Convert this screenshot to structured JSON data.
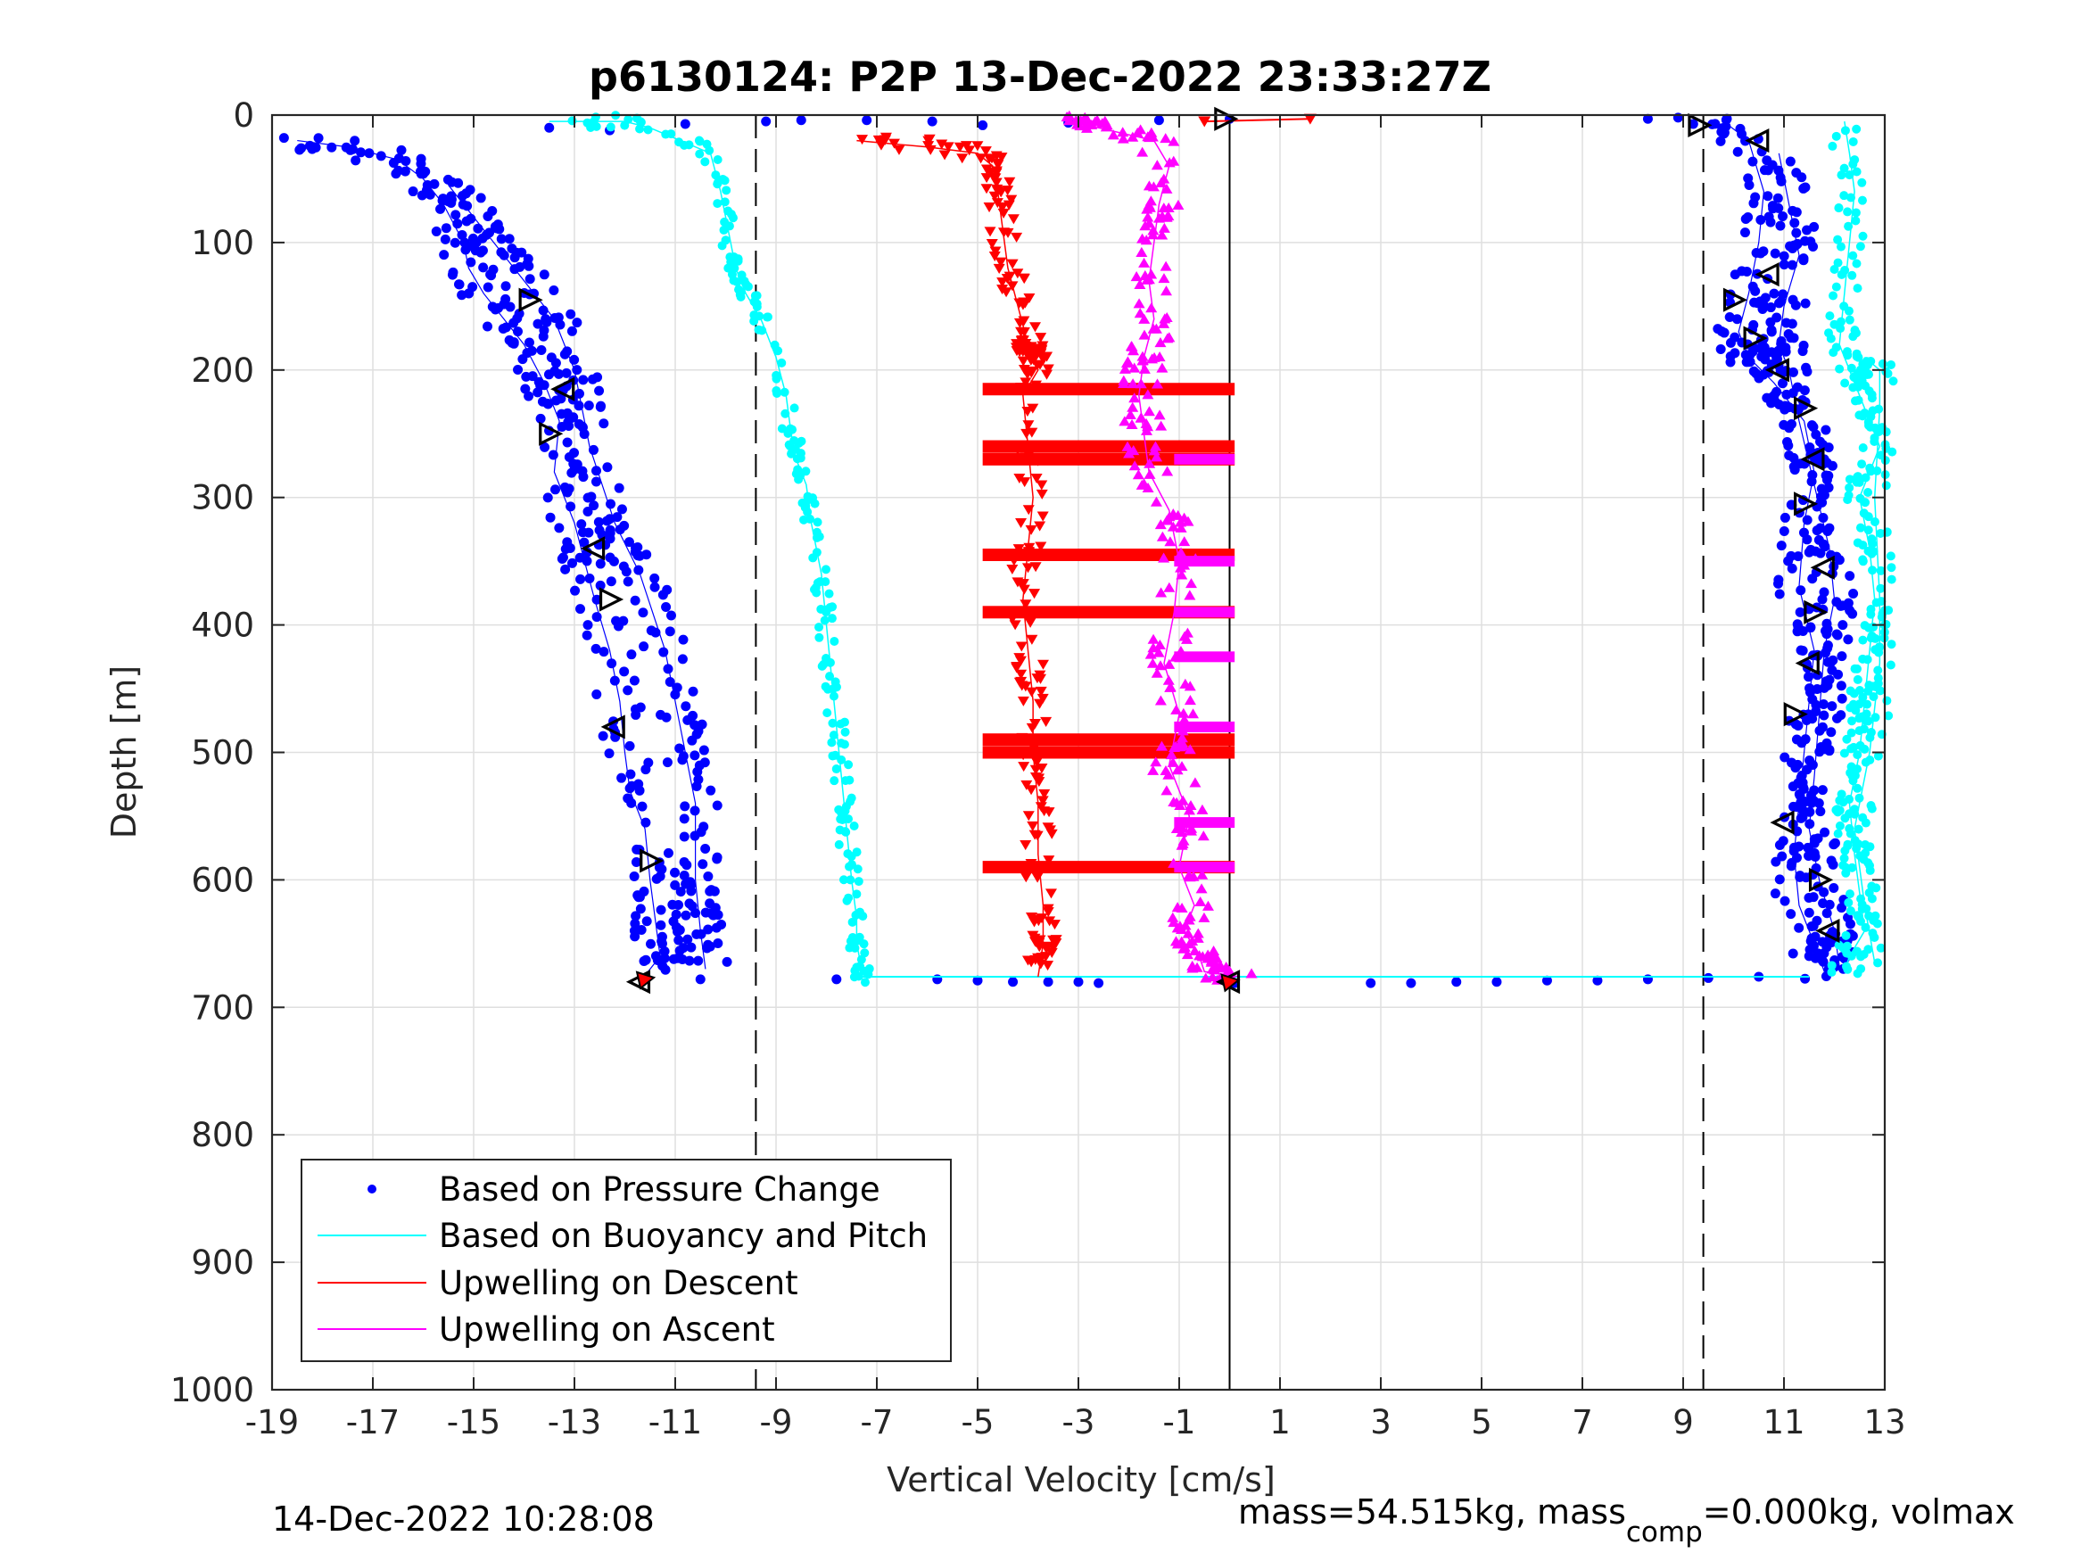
{
  "chart_data": {
    "type": "scatter",
    "title": "p6130124: P2P 13-Dec-2022 23:33:27Z",
    "xlabel": "Vertical Velocity [cm/s]",
    "ylabel": "Depth [m]",
    "xlim": [
      -19,
      13
    ],
    "ylim": [
      0,
      1000
    ],
    "y_reversed": true,
    "grid": true,
    "xticks": [
      "-19",
      "-17",
      "-15",
      "-13",
      "-11",
      "-9",
      "-7",
      "-5",
      "-3",
      "-1",
      "1",
      "3",
      "5",
      "7",
      "9",
      "11",
      "13"
    ],
    "yticks": [
      "0",
      "100",
      "200",
      "300",
      "400",
      "500",
      "600",
      "700",
      "800",
      "900",
      "1000"
    ],
    "reference_lines": {
      "dashed_x": [
        -9.4,
        9.4
      ],
      "solid_x": [
        0
      ]
    },
    "legend": {
      "position": "bottom-left",
      "entries": [
        {
          "label": "Based on Pressure Change",
          "color": "#0000ff",
          "marker": "dot"
        },
        {
          "label": "Based on Buoyancy and Pitch",
          "color": "#00ffff",
          "marker": "line"
        },
        {
          "label": "Upwelling on Descent",
          "color": "#ff0000",
          "marker": "line"
        },
        {
          "label": "Upwelling on Ascent",
          "color": "#ff00ff",
          "marker": "line"
        }
      ]
    },
    "series": [
      {
        "name": "Based on Pressure Change",
        "color": "#0000ff",
        "profiles": [
          {
            "part": "descent",
            "x": [
              -18.5,
              -17.5,
              -16.5,
              -16.0,
              -15.6,
              -15.2,
              -15.1,
              -14.8,
              -14.4,
              -14.0,
              -13.6,
              -13.3,
              -13.4,
              -13.0,
              -12.8,
              -12.6,
              -12.3,
              -12.1,
              -12.0,
              -11.9,
              -11.6,
              -11.5,
              -11.4,
              -11.3,
              -11.6
            ],
            "y": [
              20,
              25,
              35,
              50,
              70,
              100,
              120,
              140,
              160,
              180,
              210,
              240,
              280,
              320,
              350,
              380,
              420,
              460,
              500,
              530,
              560,
              600,
              630,
              660,
              675
            ]
          },
          {
            "part": "descent-outer",
            "x": [
              -15.5,
              -14.8,
              -14.2,
              -13.4,
              -13.0,
              -12.7,
              -12.2,
              -11.7,
              -11.2,
              -10.9,
              -10.6,
              -10.6,
              -10.5,
              -10.4
            ],
            "y": [
              55,
              90,
              120,
              160,
              200,
              260,
              320,
              360,
              420,
              480,
              540,
              600,
              640,
              670
            ]
          },
          {
            "part": "ascent",
            "x": [
              9.8,
              10.3,
              10.6,
              10.5,
              10.3,
              10.1,
              10.3,
              10.8,
              11.4,
              11.6,
              11.4,
              11.3,
              11.6,
              11.5,
              11.4,
              11.3,
              11.2,
              11.3,
              11.6,
              11.8
            ],
            "y": [
              5,
              20,
              60,
              100,
              140,
              170,
              190,
              210,
              240,
              280,
              320,
              370,
              420,
              460,
              500,
              540,
              580,
              620,
              650,
              672
            ]
          },
          {
            "part": "ascent-outer",
            "x": [
              10.9,
              11.1,
              11.3,
              11.0,
              10.9,
              11.1,
              11.3,
              11.6,
              11.9,
              12.0,
              11.8,
              11.7,
              11.6,
              11.5,
              11.7,
              12.0,
              12.1
            ],
            "y": [
              30,
              70,
              110,
              150,
              180,
              200,
              240,
              290,
              340,
              380,
              420,
              470,
              520,
              560,
              600,
              640,
              668
            ]
          },
          {
            "part": "bottom",
            "x": [
              -10.5,
              -7.8,
              -5.8,
              -5.0,
              -4.3,
              -3.6,
              -3.0,
              -2.6,
              0.1,
              2.8,
              3.6,
              4.5,
              5.3,
              6.3,
              7.3,
              8.3,
              9.5,
              10.5
            ],
            "y": [
              678,
              678,
              678,
              679,
              680,
              680,
              680,
              681,
              681,
              681,
              681,
              680,
              680,
              679,
              679,
              678,
              677,
              676
            ]
          },
          {
            "part": "surface",
            "x": [
              -13.5,
              -12.3,
              -10.8,
              -9.2,
              -8.5,
              -7.2,
              -5.9,
              -4.9,
              -3.2,
              -1.4,
              0.0,
              8.3,
              8.9,
              9.2
            ],
            "y": [
              10,
              12,
              7,
              5,
              4,
              4,
              5,
              8,
              6,
              4,
              3,
              3,
              2,
              7
            ]
          }
        ]
      },
      {
        "name": "Based on Buoyancy and Pitch",
        "color": "#00ffff",
        "profiles": [
          {
            "part": "descent",
            "x": [
              -13.5,
              -12.0,
              -11.5,
              -10.3,
              -10.1,
              -10.0,
              -9.9,
              -9.8,
              -9.6,
              -9.3,
              -9.0,
              -8.8,
              -8.7,
              -8.6,
              -8.4,
              -8.3,
              -8.1,
              -8.0,
              -7.9,
              -7.8,
              -7.7,
              -7.6,
              -7.5,
              -7.4,
              -7.4,
              -7.3,
              -7.3
            ],
            "y": [
              5,
              5,
              10,
              30,
              60,
              80,
              100,
              120,
              140,
              160,
              190,
              220,
              250,
              270,
              290,
              320,
              360,
              400,
              440,
              480,
              520,
              560,
              600,
              630,
              650,
              670,
              676
            ]
          },
          {
            "part": "ascent",
            "x": [
              12.2,
              12.3,
              12.4,
              12.3,
              12.2,
              12.1,
              12.3,
              12.6,
              12.9,
              12.5,
              12.7,
              12.8,
              12.7,
              12.6,
              12.5,
              12.3,
              12.4,
              12.5,
              12.6,
              12.3,
              12.2
            ],
            "y": [
              5,
              30,
              60,
              100,
              140,
              180,
              200,
              230,
              260,
              300,
              340,
              380,
              420,
              460,
              500,
              540,
              580,
              610,
              640,
              660,
              672
            ]
          },
          {
            "part": "ascent-outer",
            "x": [
              12.6,
              12.9,
              12.9,
              12.8,
              12.9,
              12.9,
              12.7,
              12.4,
              12.6,
              12.8
            ],
            "y": [
              190,
              200,
              230,
              300,
              380,
              430,
              500,
              560,
              620,
              665
            ]
          },
          {
            "part": "bottom",
            "x": [
              -7.4,
              11.5
            ],
            "y": [
              676,
              676
            ]
          }
        ]
      },
      {
        "name": "Upwelling on Descent",
        "color": "#ff0000",
        "profiles": [
          {
            "part": "main",
            "x": [
              -7.4,
              -6.0,
              -5.0,
              -4.7,
              -4.6,
              -4.5,
              -4.4,
              -4.2,
              -4.0,
              -3.9,
              -3.8,
              -4.1,
              -4.0,
              -3.9,
              -4.0,
              -4.1,
              -4.0,
              -3.9,
              -3.9,
              -3.8,
              -3.8,
              -3.7,
              -3.7,
              -3.8
            ],
            "y": [
              20,
              25,
              30,
              40,
              60,
              90,
              120,
              150,
              180,
              190,
              200,
              220,
              260,
              300,
              340,
              380,
              420,
              460,
              500,
              540,
              580,
              620,
              650,
              676
            ]
          },
          {
            "part": "horizontal-bands",
            "x": [
              -4.9,
              0.1
            ],
            "band_depths": [
              215,
              260,
              270,
              345,
              390,
              490,
              500,
              590
            ]
          },
          {
            "part": "surface",
            "x": [
              -0.5,
              1.6
            ],
            "y": [
              5,
              3
            ]
          }
        ]
      },
      {
        "name": "Upwelling on Ascent",
        "color": "#ff00ff",
        "profiles": [
          {
            "part": "main",
            "x": [
              -3.0,
              -2.6,
              -1.5,
              -1.2,
              -1.4,
              -1.5,
              -1.6,
              -1.5,
              -1.7,
              -1.8,
              -1.7,
              -1.6,
              -1.2,
              -1.0,
              -1.1,
              -1.3,
              -1.0,
              -1.2,
              -0.8,
              -1.0,
              -0.7,
              -0.9,
              -0.6,
              -0.5,
              0.2
            ],
            "y": [
              5,
              10,
              20,
              40,
              70,
              100,
              130,
              160,
              190,
              220,
              250,
              280,
              310,
              350,
              390,
              430,
              470,
              510,
              550,
              590,
              620,
              640,
              660,
              672,
              676
            ]
          },
          {
            "part": "right-edge-spikes",
            "x": [
              0.1,
              0.1,
              0.1,
              0.1,
              0.1,
              0.1,
              0.1
            ],
            "y": [
              270,
              350,
              390,
              425,
              480,
              555,
              590
            ]
          }
        ]
      }
    ],
    "markers": [
      {
        "type": "triangle",
        "color": "#000000",
        "x": [
          -13.9,
          -13.2,
          -13.5,
          -12.6,
          -12.3,
          -12.2,
          -11.5,
          -11.7
        ],
        "y": [
          145,
          215,
          250,
          340,
          380,
          480,
          585,
          680
        ]
      },
      {
        "type": "triangle",
        "color": "#000000",
        "x": [
          9.3,
          10.5,
          10.0,
          10.7,
          10.4,
          10.9,
          11.4,
          11.6,
          11.4,
          11.8,
          11.6,
          11.5,
          11.2,
          11.0,
          11.7,
          11.9
        ],
        "y": [
          8,
          20,
          145,
          125,
          175,
          200,
          230,
          270,
          305,
          355,
          390,
          430,
          470,
          555,
          600,
          640
        ]
      },
      {
        "type": "triangle",
        "color": "#000000",
        "x": [
          -0.1,
          0.0
        ],
        "y": [
          3,
          680
        ]
      },
      {
        "type": "star",
        "color": "#ff0000",
        "x": [
          -11.6,
          0.0
        ],
        "y": [
          678,
          680
        ]
      }
    ]
  },
  "footer": {
    "timestamp": "14-Dec-2022 10:28:08",
    "mass_prefix": "mass=54.515kg, mass",
    "mass_sub": "comp",
    "mass_suffix": "=0.000kg, volmax"
  }
}
